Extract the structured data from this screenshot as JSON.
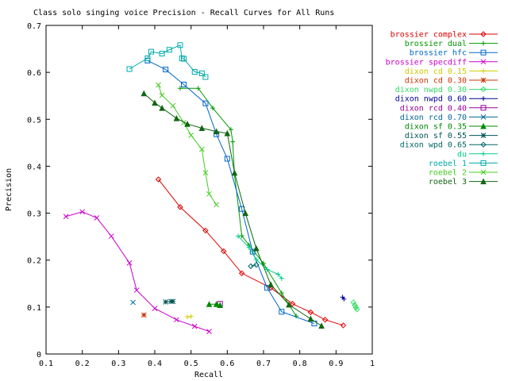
{
  "chart_data": {
    "type": "line",
    "title": "Class solo singing voice Precision - Recall Curves for All Runs",
    "xlabel": "Recall",
    "ylabel": "Precision",
    "xlim": [
      0.1,
      1
    ],
    "ylim": [
      0,
      0.7
    ],
    "xticks": [
      0.1,
      0.2,
      0.3,
      0.4,
      0.5,
      0.6,
      0.7,
      0.8,
      0.9,
      1
    ],
    "xtick_labels": [
      "0.1",
      "0.2",
      "0.3",
      "0.4",
      "0.5",
      "0.6",
      "0.7",
      "0.8",
      "0.9",
      "1"
    ],
    "yticks": [
      0,
      0.1,
      0.2,
      0.3,
      0.4,
      0.5,
      0.6,
      0.7
    ],
    "ytick_labels": [
      "0",
      "0.1",
      "0.2",
      "0.3",
      "0.4",
      "0.5",
      "0.6",
      "0.7"
    ],
    "grid": false,
    "legend_position": "right",
    "series": [
      {
        "name": "brossier complex",
        "color": "#dd0000",
        "marker": "diamond",
        "x": [
          0.41,
          0.47,
          0.54,
          0.59,
          0.64,
          0.72,
          0.78,
          0.83,
          0.87,
          0.92
        ],
        "y": [
          0.372,
          0.313,
          0.263,
          0.219,
          0.172,
          0.141,
          0.107,
          0.089,
          0.073,
          0.061
        ]
      },
      {
        "name": "brossier dual",
        "color": "#009900",
        "marker": "plus",
        "x": [
          0.47,
          0.52,
          0.56,
          0.61,
          0.615,
          0.62,
          0.64,
          0.66,
          0.7,
          0.75,
          0.79
        ],
        "y": [
          0.566,
          0.566,
          0.524,
          0.478,
          0.452,
          0.382,
          0.252,
          0.232,
          0.193,
          0.13,
          0.081
        ]
      },
      {
        "name": "brossier hfc",
        "color": "#0066cc",
        "marker": "square",
        "x": [
          0.38,
          0.43,
          0.48,
          0.54,
          0.57,
          0.6,
          0.64,
          0.67,
          0.71,
          0.75,
          0.84
        ],
        "y": [
          0.625,
          0.606,
          0.574,
          0.534,
          0.468,
          0.416,
          0.309,
          0.218,
          0.141,
          0.09,
          0.065
        ]
      },
      {
        "name": "brossier specdiff",
        "color": "#cc00cc",
        "marker": "x",
        "x": [
          0.155,
          0.2,
          0.24,
          0.28,
          0.33,
          0.35,
          0.4,
          0.46,
          0.51,
          0.55
        ],
        "y": [
          0.293,
          0.303,
          0.29,
          0.251,
          0.194,
          0.136,
          0.097,
          0.073,
          0.059,
          0.048
        ]
      },
      {
        "name": "dixon cd 0.15",
        "color": "#cccc00",
        "marker": "plus",
        "x": [
          0.49,
          0.5
        ],
        "y": [
          0.079,
          0.08
        ]
      },
      {
        "name": "dixon cd 0.30",
        "color": "#cc3300",
        "marker": "star",
        "x": [
          0.37
        ],
        "y": [
          0.083
        ]
      },
      {
        "name": "dixon nwpd 0.30",
        "color": "#33dd66",
        "marker": "diamond",
        "x": [
          0.948,
          0.952,
          0.955,
          0.958
        ],
        "y": [
          0.11,
          0.104,
          0.099,
          0.095
        ]
      },
      {
        "name": "dixon nwpd 0.60",
        "color": "#000099",
        "marker": "plus",
        "x": [
          0.918,
          0.922
        ],
        "y": [
          0.121,
          0.117
        ]
      },
      {
        "name": "dixon rcd 0.40",
        "color": "#990099",
        "marker": "square",
        "x": [
          0.58
        ],
        "y": [
          0.107
        ]
      },
      {
        "name": "dixon rcd 0.70",
        "color": "#006699",
        "marker": "x",
        "x": [
          0.34
        ],
        "y": [
          0.11
        ]
      },
      {
        "name": "dixon sf 0.35",
        "color": "#008800",
        "marker": "triangle",
        "x": [
          0.55,
          0.57,
          0.58
        ],
        "y": [
          0.106,
          0.106,
          0.104
        ]
      },
      {
        "name": "dixon sf 0.55",
        "color": "#005555",
        "marker": "star",
        "x": [
          0.43,
          0.445,
          0.45
        ],
        "y": [
          0.111,
          0.112,
          0.112
        ]
      },
      {
        "name": "dixon wpd 0.65",
        "color": "#006666",
        "marker": "diamond",
        "x": [
          0.665,
          0.68
        ],
        "y": [
          0.187,
          0.19
        ]
      },
      {
        "name": "du",
        "color": "#00cc88",
        "marker": "plus",
        "x": [
          0.63,
          0.66,
          0.68,
          0.71,
          0.74,
          0.75
        ],
        "y": [
          0.251,
          0.227,
          0.201,
          0.18,
          0.17,
          0.161
        ]
      },
      {
        "name": "roebel 1",
        "color": "#00aaaa",
        "marker": "square",
        "x": [
          0.33,
          0.38,
          0.39,
          0.42,
          0.44,
          0.47,
          0.475,
          0.48,
          0.51,
          0.53,
          0.54
        ],
        "y": [
          0.607,
          0.63,
          0.644,
          0.64,
          0.648,
          0.658,
          0.63,
          0.629,
          0.601,
          0.598,
          0.59
        ]
      },
      {
        "name": "roebel 2",
        "color": "#44cc22",
        "marker": "x",
        "x": [
          0.41,
          0.42,
          0.45,
          0.48,
          0.5,
          0.53,
          0.54,
          0.55,
          0.57
        ],
        "y": [
          0.573,
          0.551,
          0.529,
          0.493,
          0.466,
          0.436,
          0.386,
          0.341,
          0.318
        ]
      },
      {
        "name": "roebel 3",
        "color": "#116611",
        "marker": "triangle",
        "x": [
          0.37,
          0.4,
          0.42,
          0.46,
          0.49,
          0.53,
          0.57,
          0.6,
          0.62,
          0.65,
          0.68,
          0.72,
          0.77,
          0.83,
          0.86
        ],
        "y": [
          0.555,
          0.535,
          0.524,
          0.502,
          0.49,
          0.481,
          0.474,
          0.47,
          0.386,
          0.3,
          0.225,
          0.148,
          0.105,
          0.075,
          0.06
        ]
      }
    ]
  }
}
